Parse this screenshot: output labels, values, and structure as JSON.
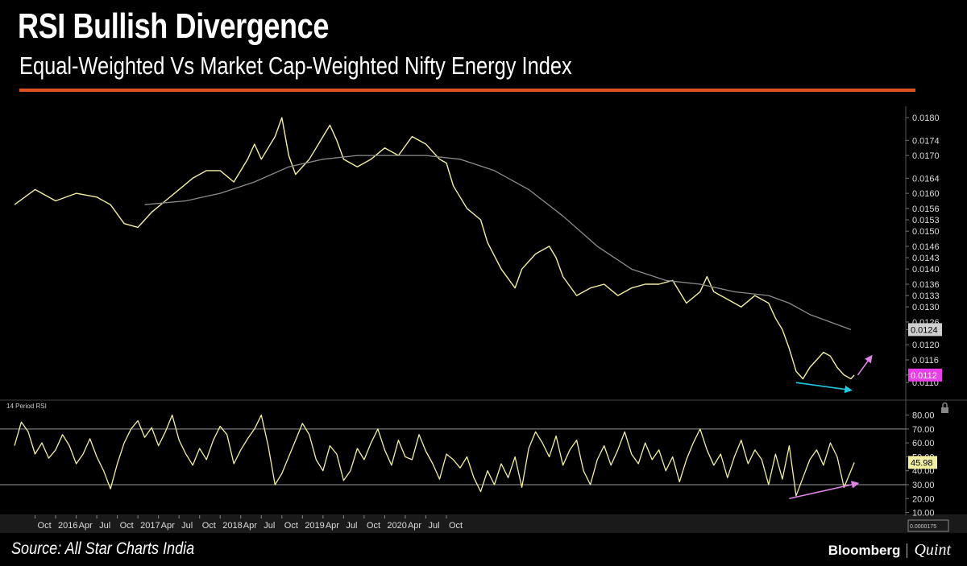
{
  "header": {
    "title": "RSI Bullish Divergence",
    "subtitle": "Equal-Weighted Vs Market Cap-Weighted Nifty Energy Index"
  },
  "footer": {
    "source": "Source: All Star Charts India",
    "brand_primary": "Bloomberg",
    "brand_secondary": "Quint"
  },
  "colors": {
    "accent_rule": "#e0521f",
    "price_line": "#f3efa2",
    "moving_average": "#8c8c8c",
    "ma_label_bg": "#cfcfcf",
    "price_label_bg": "#e83ee8",
    "rsi_label_bg": "#f3efa2",
    "arrow_down": "#22c8e0",
    "arrow_up": "#e085e8"
  },
  "chart_data": [
    {
      "type": "line",
      "panel": "price",
      "y_ticks": [
        "0.0180",
        "0.0174",
        "0.0170",
        "0.0164",
        "0.0160",
        "0.0156",
        "0.0153",
        "0.0150",
        "0.0146",
        "0.0143",
        "0.0140",
        "0.0136",
        "0.0133",
        "0.0130",
        "0.0126",
        "0.0124",
        "0.0120",
        "0.0116",
        "0.0112",
        "0.0110"
      ],
      "ylim": [
        0.0106,
        0.0183
      ],
      "last_labels": [
        {
          "text": "0.0124",
          "value": 0.0124,
          "style": "ma"
        },
        {
          "text": "0.0112",
          "value": 0.0112,
          "style": "price"
        }
      ],
      "series": [
        {
          "role": "price",
          "points": [
            [
              0,
              0.0157
            ],
            [
              3,
              0.0161
            ],
            [
              6,
              0.0158
            ],
            [
              9,
              0.016
            ],
            [
              12,
              0.0159
            ],
            [
              14,
              0.0157
            ],
            [
              16,
              0.0152
            ],
            [
              18,
              0.0151
            ],
            [
              20,
              0.0155
            ],
            [
              22,
              0.0158
            ],
            [
              24,
              0.0161
            ],
            [
              26,
              0.0164
            ],
            [
              28,
              0.0166
            ],
            [
              30,
              0.0166
            ],
            [
              32,
              0.0163
            ],
            [
              34,
              0.0169
            ],
            [
              35,
              0.0173
            ],
            [
              36,
              0.0169
            ],
            [
              38,
              0.0175
            ],
            [
              39,
              0.018
            ],
            [
              40,
              0.017
            ],
            [
              41,
              0.0165
            ],
            [
              43,
              0.0169
            ],
            [
              45,
              0.0175
            ],
            [
              46,
              0.0178
            ],
            [
              47,
              0.0174
            ],
            [
              48,
              0.0169
            ],
            [
              50,
              0.0167
            ],
            [
              52,
              0.0169
            ],
            [
              54,
              0.0172
            ],
            [
              56,
              0.017
            ],
            [
              58,
              0.0175
            ],
            [
              60,
              0.0173
            ],
            [
              62,
              0.0169
            ],
            [
              63,
              0.0168
            ],
            [
              64,
              0.0162
            ],
            [
              65,
              0.0159
            ],
            [
              66,
              0.0156
            ],
            [
              68,
              0.0153
            ],
            [
              69,
              0.0147
            ],
            [
              71,
              0.014
            ],
            [
              73,
              0.0135
            ],
            [
              74,
              0.014
            ],
            [
              76,
              0.0144
            ],
            [
              78,
              0.0146
            ],
            [
              79,
              0.0143
            ],
            [
              80,
              0.0138
            ],
            [
              82,
              0.0133
            ],
            [
              84,
              0.0135
            ],
            [
              86,
              0.0136
            ],
            [
              88,
              0.0133
            ],
            [
              90,
              0.0135
            ],
            [
              92,
              0.0136
            ],
            [
              94,
              0.0136
            ],
            [
              96,
              0.0137
            ],
            [
              98,
              0.0131
            ],
            [
              100,
              0.0134
            ],
            [
              101,
              0.0138
            ],
            [
              102,
              0.0134
            ],
            [
              104,
              0.0132
            ],
            [
              106,
              0.013
            ],
            [
              108,
              0.0133
            ],
            [
              110,
              0.0131
            ],
            [
              111,
              0.0127
            ],
            [
              112,
              0.0124
            ],
            [
              113,
              0.0119
            ],
            [
              114,
              0.0113
            ],
            [
              115,
              0.0111
            ],
            [
              116,
              0.0114
            ],
            [
              117,
              0.0116
            ],
            [
              118,
              0.0118
            ],
            [
              119,
              0.0117
            ],
            [
              120,
              0.0114
            ],
            [
              121,
              0.0112
            ],
            [
              122,
              0.0111
            ],
            [
              122.5,
              0.0112
            ]
          ]
        },
        {
          "role": "moving_average",
          "points": [
            [
              19,
              0.0157
            ],
            [
              25,
              0.0158
            ],
            [
              30,
              0.016
            ],
            [
              35,
              0.0163
            ],
            [
              40,
              0.0167
            ],
            [
              45,
              0.0169
            ],
            [
              50,
              0.017
            ],
            [
              55,
              0.017
            ],
            [
              60,
              0.017
            ],
            [
              65,
              0.0169
            ],
            [
              70,
              0.0166
            ],
            [
              75,
              0.0161
            ],
            [
              80,
              0.0154
            ],
            [
              85,
              0.0146
            ],
            [
              90,
              0.014
            ],
            [
              95,
              0.0137
            ],
            [
              100,
              0.0136
            ],
            [
              105,
              0.0134
            ],
            [
              110,
              0.0133
            ],
            [
              113,
              0.0131
            ],
            [
              116,
              0.0128
            ],
            [
              119,
              0.0126
            ],
            [
              122,
              0.0124
            ]
          ]
        }
      ],
      "annotations": [
        {
          "type": "arrow",
          "from": [
            114,
            0.011
          ],
          "to": [
            122,
            0.0108
          ],
          "color": "#22c8e0"
        },
        {
          "type": "arrow",
          "from": [
            123,
            0.0112
          ],
          "to": [
            125,
            0.0117
          ],
          "color": "#e085e8"
        }
      ]
    },
    {
      "type": "line",
      "panel": "rsi",
      "title": "14 Period RSI",
      "y_ticks": [
        "80.00",
        "70.00",
        "60.00",
        "50.00",
        "40.00",
        "30.00",
        "20.00",
        "10.00"
      ],
      "ylim": [
        8,
        89
      ],
      "reference_lines": [
        70,
        30
      ],
      "last_label": {
        "text": "45.98",
        "value": 45.98
      },
      "points": [
        [
          0,
          58
        ],
        [
          1,
          75
        ],
        [
          2,
          68
        ],
        [
          3,
          52
        ],
        [
          4,
          60
        ],
        [
          5,
          49
        ],
        [
          6,
          55
        ],
        [
          7,
          66
        ],
        [
          8,
          58
        ],
        [
          9,
          45
        ],
        [
          10,
          52
        ],
        [
          11,
          63
        ],
        [
          12,
          50
        ],
        [
          13,
          40
        ],
        [
          14,
          27
        ],
        [
          15,
          45
        ],
        [
          16,
          60
        ],
        [
          17,
          70
        ],
        [
          18,
          76
        ],
        [
          19,
          64
        ],
        [
          20,
          71
        ],
        [
          21,
          58
        ],
        [
          22,
          68
        ],
        [
          23,
          80
        ],
        [
          24,
          62
        ],
        [
          25,
          52
        ],
        [
          26,
          44
        ],
        [
          27,
          56
        ],
        [
          28,
          48
        ],
        [
          29,
          62
        ],
        [
          30,
          72
        ],
        [
          31,
          66
        ],
        [
          32,
          45
        ],
        [
          33,
          55
        ],
        [
          34,
          63
        ],
        [
          35,
          70
        ],
        [
          36,
          80
        ],
        [
          37,
          58
        ],
        [
          38,
          30
        ],
        [
          39,
          38
        ],
        [
          40,
          50
        ],
        [
          41,
          62
        ],
        [
          42,
          74
        ],
        [
          43,
          66
        ],
        [
          44,
          48
        ],
        [
          45,
          40
        ],
        [
          46,
          58
        ],
        [
          47,
          52
        ],
        [
          48,
          33
        ],
        [
          49,
          40
        ],
        [
          50,
          56
        ],
        [
          51,
          48
        ],
        [
          52,
          60
        ],
        [
          53,
          70
        ],
        [
          54,
          55
        ],
        [
          55,
          44
        ],
        [
          56,
          62
        ],
        [
          57,
          50
        ],
        [
          58,
          48
        ],
        [
          59,
          66
        ],
        [
          60,
          54
        ],
        [
          61,
          45
        ],
        [
          62,
          34
        ],
        [
          63,
          52
        ],
        [
          64,
          48
        ],
        [
          65,
          42
        ],
        [
          66,
          50
        ],
        [
          67,
          35
        ],
        [
          68,
          25
        ],
        [
          69,
          40
        ],
        [
          70,
          30
        ],
        [
          71,
          45
        ],
        [
          72,
          35
        ],
        [
          73,
          50
        ],
        [
          74,
          28
        ],
        [
          75,
          56
        ],
        [
          76,
          68
        ],
        [
          77,
          60
        ],
        [
          78,
          50
        ],
        [
          79,
          65
        ],
        [
          80,
          44
        ],
        [
          81,
          55
        ],
        [
          82,
          62
        ],
        [
          83,
          40
        ],
        [
          84,
          30
        ],
        [
          85,
          48
        ],
        [
          86,
          58
        ],
        [
          87,
          44
        ],
        [
          88,
          55
        ],
        [
          89,
          68
        ],
        [
          90,
          52
        ],
        [
          91,
          45
        ],
        [
          92,
          60
        ],
        [
          93,
          48
        ],
        [
          94,
          55
        ],
        [
          95,
          40
        ],
        [
          96,
          50
        ],
        [
          97,
          32
        ],
        [
          98,
          48
        ],
        [
          99,
          60
        ],
        [
          100,
          70
        ],
        [
          101,
          55
        ],
        [
          102,
          44
        ],
        [
          103,
          52
        ],
        [
          104,
          35
        ],
        [
          105,
          50
        ],
        [
          106,
          62
        ],
        [
          107,
          45
        ],
        [
          108,
          55
        ],
        [
          109,
          48
        ],
        [
          110,
          30
        ],
        [
          111,
          52
        ],
        [
          112,
          34
        ],
        [
          113,
          58
        ],
        [
          114,
          22
        ],
        [
          115,
          35
        ],
        [
          116,
          48
        ],
        [
          117,
          55
        ],
        [
          118,
          44
        ],
        [
          119,
          60
        ],
        [
          120,
          50
        ],
        [
          121,
          28
        ],
        [
          122,
          40
        ],
        [
          122.5,
          45.98
        ]
      ],
      "annotations": [
        {
          "type": "arrow",
          "from": [
            113,
            20
          ],
          "to": [
            123,
            31
          ],
          "color": "#e085e8"
        }
      ]
    }
  ],
  "x_axis": {
    "x_unit": "months since Jul 2015",
    "xlim": [
      0,
      130
    ],
    "ticks": [
      {
        "label": "Oct",
        "x": 3
      },
      {
        "label": "2016",
        "x": 6
      },
      {
        "label": "Apr",
        "x": 9
      },
      {
        "label": "Jul",
        "x": 12
      },
      {
        "label": "Oct",
        "x": 15
      },
      {
        "label": "2017",
        "x": 18
      },
      {
        "label": "Apr",
        "x": 21
      },
      {
        "label": "Jul",
        "x": 24
      },
      {
        "label": "Oct",
        "x": 27
      },
      {
        "label": "2018",
        "x": 30
      },
      {
        "label": "Apr",
        "x": 33
      },
      {
        "label": "Jul",
        "x": 36
      },
      {
        "label": "Oct",
        "x": 39
      },
      {
        "label": "2019",
        "x": 42
      },
      {
        "label": "Apr",
        "x": 45
      },
      {
        "label": "Jul",
        "x": 48
      },
      {
        "label": "Oct",
        "x": 51
      },
      {
        "label": "2020",
        "x": 54
      },
      {
        "label": "Apr",
        "x": 57
      },
      {
        "label": "Jul",
        "x": 60
      },
      {
        "label": "Oct",
        "x": 63
      }
    ],
    "corner_label": "0.0000175"
  }
}
